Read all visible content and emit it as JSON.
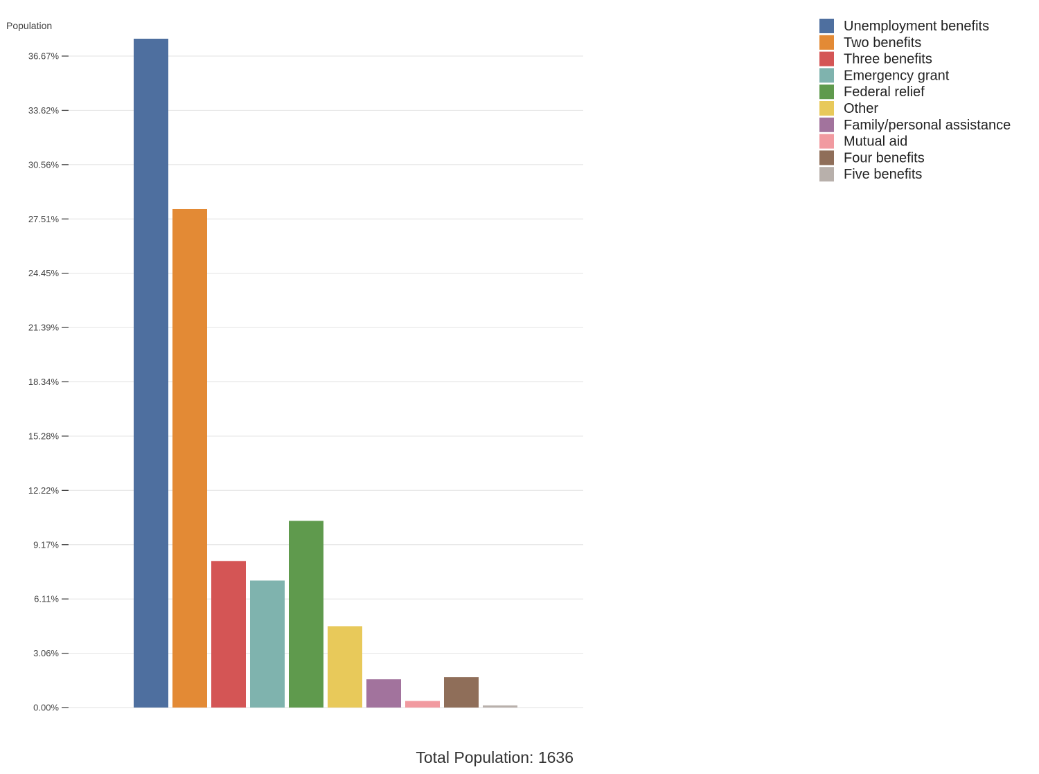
{
  "chart_data": {
    "type": "bar",
    "ylabel": "Population",
    "ylim": [
      0,
      38.5
    ],
    "yticks": [
      "0.00%",
      "3.06%",
      "6.11%",
      "9.17%",
      "12.22%",
      "15.28%",
      "18.34%",
      "21.39%",
      "24.45%",
      "27.51%",
      "30.56%",
      "33.62%",
      "36.67%"
    ],
    "ytick_values": [
      0,
      3.056,
      6.112,
      9.168,
      12.224,
      15.28,
      18.336,
      21.392,
      24.448,
      27.504,
      30.56,
      33.616,
      36.672
    ],
    "grid": true,
    "legend_position": "top-right",
    "series": [
      {
        "name": "Unemployment benefits",
        "value": 37.65,
        "color": "#4e6f9f"
      },
      {
        "name": "Two benefits",
        "value": 28.06,
        "color": "#e38a35"
      },
      {
        "name": "Three benefits",
        "value": 8.25,
        "color": "#d45555"
      },
      {
        "name": "Emergency grant",
        "value": 7.15,
        "color": "#7fb3ae"
      },
      {
        "name": "Federal relief",
        "value": 10.51,
        "color": "#5f9a4d"
      },
      {
        "name": "Other",
        "value": 4.58,
        "color": "#e8c95a"
      },
      {
        "name": "Family/personal assistance",
        "value": 1.59,
        "color": "#a2739d"
      },
      {
        "name": "Mutual aid",
        "value": 0.37,
        "color": "#f19aa0"
      },
      {
        "name": "Four benefits",
        "value": 1.71,
        "color": "#8f6e59"
      },
      {
        "name": "Five benefits",
        "value": 0.12,
        "color": "#b8b0ab"
      }
    ],
    "footer": "Total Population: 1636"
  }
}
